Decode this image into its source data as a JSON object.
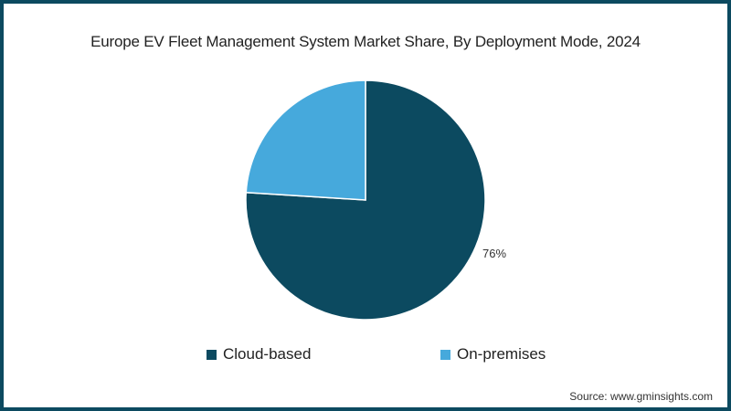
{
  "chart_data": {
    "type": "pie",
    "title": "Europe EV Fleet Management System Market Share, By Deployment Mode, 2024",
    "categories": [
      "Cloud-based",
      "On-premises"
    ],
    "values": [
      76,
      24
    ],
    "colors": [
      "#0c4a60",
      "#46a9dc"
    ],
    "data_labels": [
      "76%",
      ""
    ],
    "legend_position": "bottom",
    "start_angle": "12 o'clock, Cloud-based clockwise"
  },
  "title": "Europe EV Fleet Management System Market Share, By Deployment Mode, 2024",
  "labels": {
    "cloud_pct": "76%"
  },
  "legend": {
    "items": [
      {
        "label": "Cloud-based",
        "color": "#0c4a60"
      },
      {
        "label": "On-premises",
        "color": "#46a9dc"
      }
    ]
  },
  "source": "Source: www.gminsights.com",
  "colors": {
    "border": "#0c4a60",
    "background": "#ffffff"
  }
}
